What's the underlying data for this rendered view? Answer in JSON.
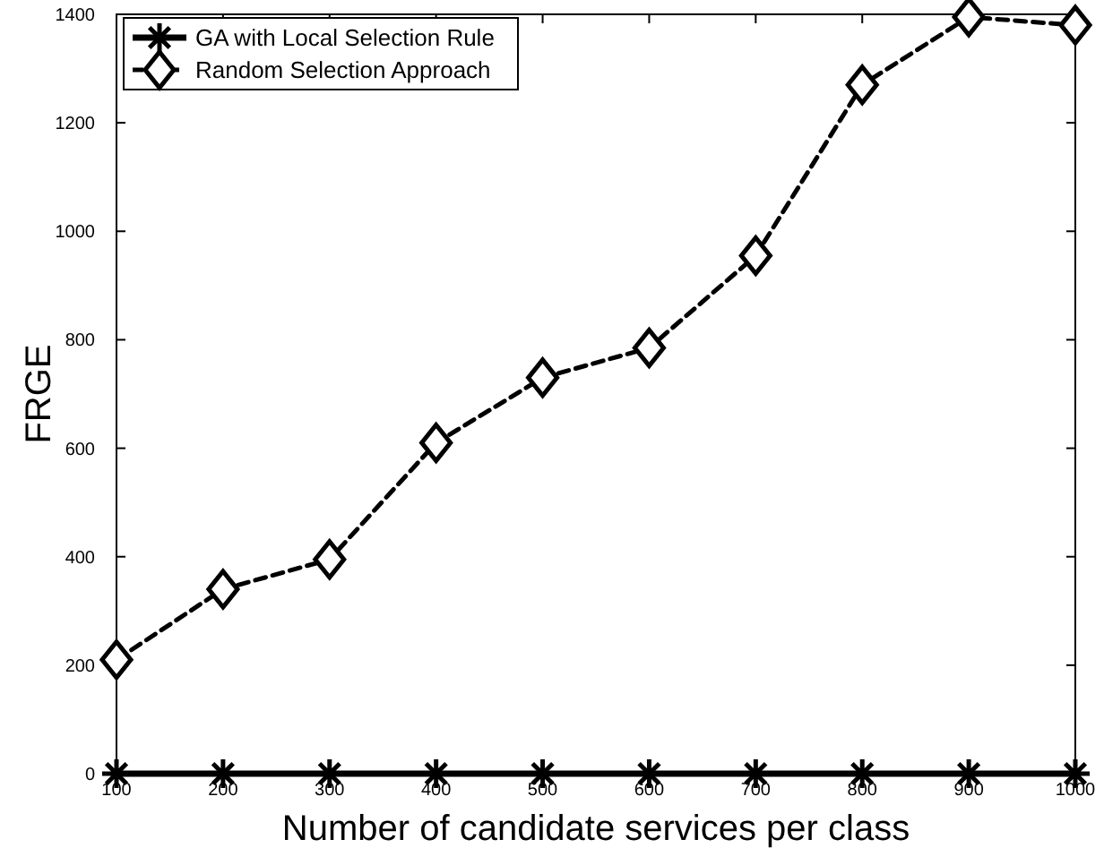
{
  "chart_data": {
    "type": "line",
    "xlabel": "Number of candidate services per class",
    "ylabel": "FRGE",
    "x": [
      100,
      200,
      300,
      400,
      500,
      600,
      700,
      800,
      900,
      1000
    ],
    "series": [
      {
        "name": "GA with Local Selection Rule",
        "color": "#000000",
        "marker": "cross",
        "line_style": "solid",
        "values": [
          0,
          0,
          0,
          0,
          0,
          0,
          0,
          0,
          0,
          0
        ]
      },
      {
        "name": "Random Selection Approach",
        "color": "#000000",
        "marker": "diamond",
        "line_style": "dashed",
        "values": [
          210,
          340,
          395,
          610,
          730,
          785,
          955,
          1270,
          1395,
          1380
        ]
      }
    ],
    "xlim": [
      100,
      1000
    ],
    "xticks": [
      100,
      200,
      300,
      400,
      500,
      600,
      700,
      800,
      900,
      1000
    ],
    "ylim": [
      0,
      1400
    ],
    "yticks": [
      0,
      200,
      400,
      600,
      800,
      1000,
      1200,
      1400
    ],
    "legend": "top left"
  }
}
